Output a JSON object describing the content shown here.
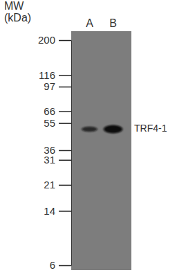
{
  "chart_data": {
    "type": "blot",
    "ylabel": [
      "MW",
      "(kDa)"
    ],
    "categories": [
      "A",
      "B"
    ],
    "values": [
      50,
      50
    ],
    "band_intensity": [
      0.45,
      1
    ],
    "band_label": "TRF4-1",
    "log": "y",
    "ylim": [
      6,
      200
    ],
    "yticks": [
      200,
      116,
      97,
      66,
      55,
      36,
      31,
      21,
      14,
      6
    ]
  }
}
